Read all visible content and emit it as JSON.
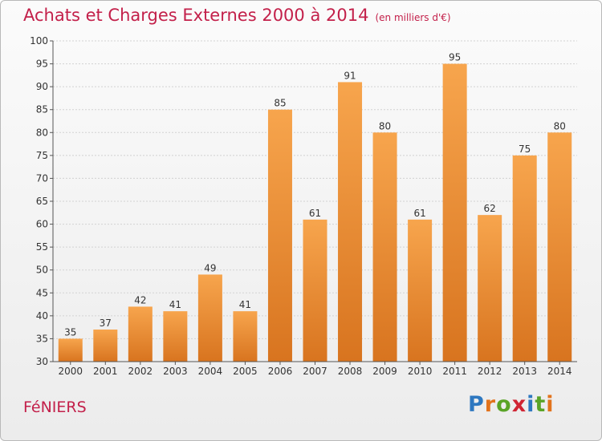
{
  "header": {
    "title": "Achats et Charges Externes 2000 à 2014",
    "subtitle": "(en milliers d'€)"
  },
  "footer": {
    "commune": "FéNIERS",
    "logo": [
      "P",
      "r",
      "o",
      "x",
      "i",
      "t",
      "i"
    ]
  },
  "colors": {
    "title": "#c3204a",
    "bar_light": "#f7a54d",
    "bar_dark": "#d8741f",
    "logo": [
      "#2e78c0",
      "#e2731c",
      "#5aa427",
      "#d02433",
      "#2e78c0",
      "#5aa427",
      "#e2731c"
    ]
  },
  "chart_data": {
    "type": "bar",
    "title": "Achats et Charges Externes 2000 à 2014",
    "subtitle": "(en milliers d'€)",
    "categories": [
      "2000",
      "2001",
      "2002",
      "2003",
      "2004",
      "2005",
      "2006",
      "2007",
      "2008",
      "2009",
      "2010",
      "2011",
      "2012",
      "2013",
      "2014"
    ],
    "values": [
      35,
      37,
      42,
      41,
      49,
      41,
      85,
      61,
      91,
      80,
      61,
      95,
      62,
      75,
      80
    ],
    "ylim": [
      30,
      100
    ],
    "yticks": [
      30,
      35,
      40,
      45,
      50,
      55,
      60,
      65,
      70,
      75,
      80,
      85,
      90,
      95,
      100
    ],
    "grid": true,
    "xlabel": "",
    "ylabel": ""
  }
}
